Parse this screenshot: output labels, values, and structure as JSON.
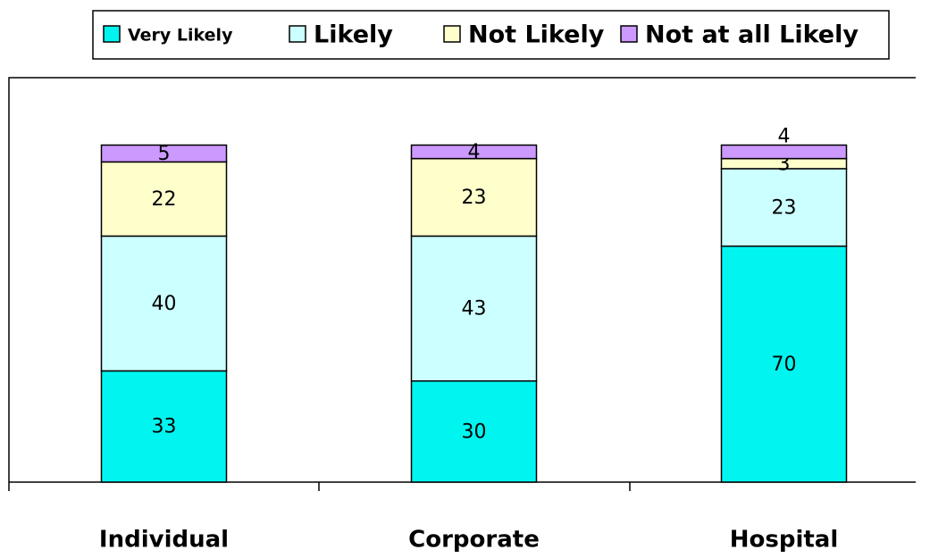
{
  "chart_data": {
    "type": "stacked_bar",
    "categories": [
      "Individual",
      "Corporate",
      "Hospital"
    ],
    "series": [
      {
        "name": "Very Likely",
        "color": "#00f5f0",
        "values": [
          33,
          30,
          70
        ]
      },
      {
        "name": "Likely",
        "color": "#ccffff",
        "values": [
          40,
          43,
          23
        ]
      },
      {
        "name": "Not Likely",
        "color": "#ffffcc",
        "values": [
          22,
          23,
          3
        ]
      },
      {
        "name": "Not at all Likely",
        "color": "#cc99ff",
        "values": [
          5,
          4,
          4
        ]
      }
    ],
    "ylim": [
      0,
      120
    ],
    "legend": "top"
  }
}
